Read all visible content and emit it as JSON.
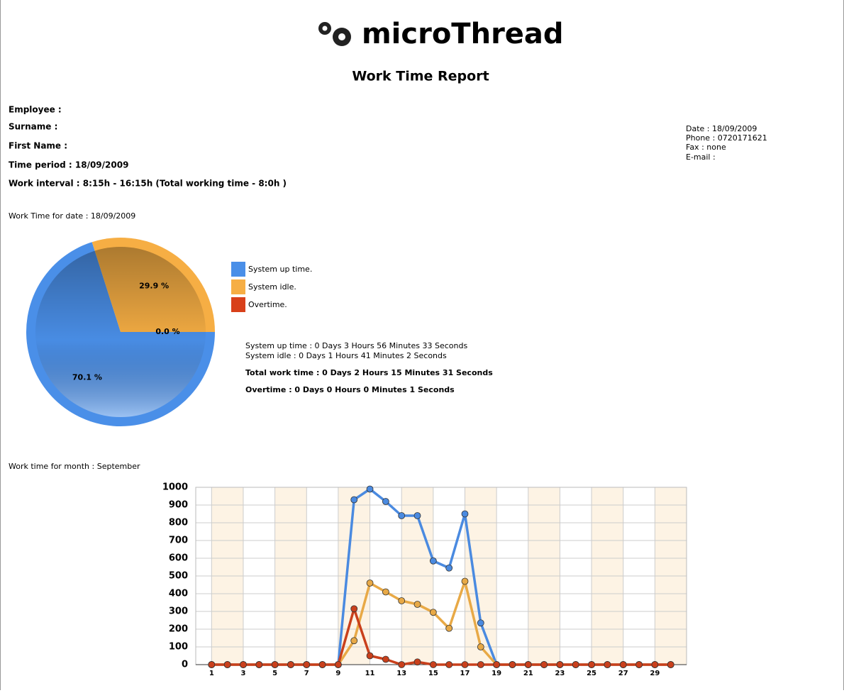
{
  "logo": "microThread",
  "title": "Work Time Report",
  "employee": {
    "heading": "Employee :",
    "surname": "Surname :",
    "first_name": "First Name :",
    "time_period": "Time period : 18/09/2009",
    "work_interval": "Work interval : 8:15h - 16:15h (Total working time - 8:0h )"
  },
  "contact": {
    "date": "Date : 18/09/2009",
    "phone": "Phone : 0720171621",
    "fax": "Fax : none",
    "email": "E-mail :"
  },
  "daily_caption": "Work Time for date : 18/09/2009",
  "summary": {
    "up_time": "System up time : 0 Days 3 Hours 56 Minutes 33 Seconds",
    "idle": "System idle : 0 Days 1 Hours 41 Minutes 2 Seconds",
    "total": "Total work time : 0 Days 2 Hours 15 Minutes 31 Seconds",
    "overtime": "Overtime : 0 Days 0 Hours 0 Minutes 1 Seconds"
  },
  "monthly_caption": "Work time for month : September",
  "chart_data": [
    {
      "type": "pie",
      "categories": [
        "System up time.",
        "System idle.",
        "Overtime."
      ],
      "values": [
        70.1,
        29.9,
        0.0
      ],
      "value_labels": [
        "70.1 %",
        "29.9 %",
        "0.0 %"
      ],
      "colors": [
        "#4a8fe8",
        "#f6ae44",
        "#d8401a"
      ]
    },
    {
      "type": "line",
      "x": [
        1,
        2,
        3,
        4,
        5,
        6,
        7,
        8,
        9,
        10,
        11,
        12,
        13,
        14,
        15,
        16,
        17,
        18,
        19,
        20,
        21,
        22,
        23,
        24,
        25,
        26,
        27,
        28,
        29,
        30
      ],
      "xlim": [
        0,
        31
      ],
      "xticks": [
        1,
        3,
        5,
        7,
        9,
        11,
        13,
        15,
        17,
        19,
        21,
        23,
        25,
        27,
        29
      ],
      "ylim": [
        0,
        1000
      ],
      "yticks": [
        0,
        100,
        200,
        300,
        400,
        500,
        600,
        700,
        800,
        900,
        1000
      ],
      "grid": true,
      "series": [
        {
          "color": "#4a8ae0",
          "values": [
            0,
            0,
            0,
            0,
            0,
            0,
            0,
            0,
            0,
            930,
            990,
            920,
            840,
            840,
            585,
            545,
            850,
            235,
            0,
            0,
            0,
            0,
            0,
            0,
            0,
            0,
            0,
            0,
            0,
            0
          ]
        },
        {
          "color": "#e8a946",
          "values": [
            0,
            0,
            0,
            0,
            0,
            0,
            0,
            0,
            0,
            135,
            460,
            410,
            360,
            340,
            295,
            205,
            470,
            100,
            0,
            0,
            0,
            0,
            0,
            0,
            0,
            0,
            0,
            0,
            0,
            0
          ]
        },
        {
          "color": "#c9401c",
          "values": [
            0,
            0,
            0,
            0,
            0,
            0,
            0,
            0,
            0,
            315,
            50,
            30,
            0,
            15,
            0,
            0,
            0,
            0,
            0,
            0,
            0,
            0,
            0,
            0,
            0,
            0,
            0,
            0,
            0,
            0
          ]
        }
      ]
    }
  ]
}
